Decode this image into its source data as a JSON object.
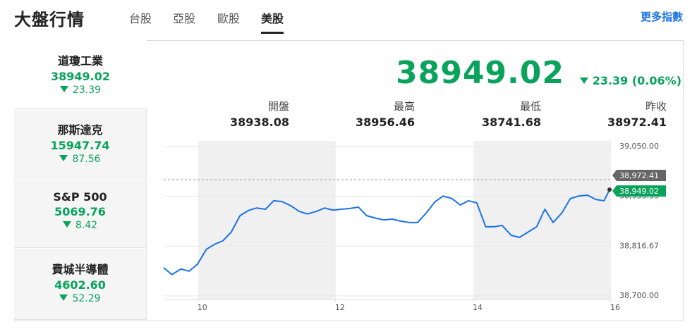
{
  "header": {
    "title": "大盤行情",
    "tabs": [
      "台股",
      "亞股",
      "歐股",
      "美股"
    ],
    "more": "更多指數"
  },
  "sidebar": {
    "items": [
      {
        "name": "道瓊工業",
        "value": "38949.02",
        "change": "23.39"
      },
      {
        "name": "那斯達克",
        "value": "15947.74",
        "change": "87.56"
      },
      {
        "name": "S&P 500",
        "value": "5069.76",
        "change": "8.42"
      },
      {
        "name": "費城半導體",
        "value": "4602.60",
        "change": "52.29"
      }
    ]
  },
  "quote": {
    "price": "38949.02",
    "change": "23.39 (0.06%)",
    "stats": [
      {
        "label": "開盤",
        "value": "38938.08"
      },
      {
        "label": "最高",
        "value": "38956.46"
      },
      {
        "label": "最低",
        "value": "38741.68"
      },
      {
        "label": "昨收",
        "value": "38972.41"
      }
    ]
  },
  "chart_data": {
    "type": "line",
    "x": [
      9.5,
      9.62,
      9.75,
      9.87,
      9.99,
      10.12,
      10.24,
      10.36,
      10.48,
      10.61,
      10.73,
      10.85,
      10.98,
      11.1,
      11.22,
      11.35,
      11.47,
      11.59,
      11.72,
      11.84,
      11.96,
      12.08,
      12.21,
      12.33,
      12.45,
      12.58,
      12.7,
      12.82,
      12.95,
      13.07,
      13.19,
      13.32,
      13.44,
      13.56,
      13.69,
      13.81,
      13.93,
      14.05,
      14.18,
      14.3,
      14.42,
      14.55,
      14.67,
      14.79,
      14.92,
      15.04,
      15.16,
      15.29,
      15.41,
      15.53,
      15.66,
      15.78,
      15.9,
      15.98
    ],
    "series": [
      {
        "name": "道瓊工業",
        "color": "#1a73e8",
        "values": [
          38766,
          38750,
          38763,
          38758,
          38774,
          38809,
          38821,
          38829,
          38849,
          38888,
          38900,
          38906,
          38903,
          38923,
          38921,
          38911,
          38898,
          38892,
          38898,
          38906,
          38901,
          38903,
          38905,
          38908,
          38888,
          38882,
          38878,
          38880,
          38875,
          38872,
          38872,
          38895,
          38920,
          38934,
          38928,
          38913,
          38923,
          38918,
          38862,
          38862,
          38865,
          38842,
          38837,
          38849,
          38862,
          38903,
          38872,
          38895,
          38928,
          38934,
          38936,
          38926,
          38923,
          38949.02
        ]
      }
    ],
    "xlim": [
      9.5,
      16
    ],
    "xticks": [
      10,
      12,
      14,
      16
    ],
    "ylim": [
      38700,
      39050
    ],
    "yticks": [
      {
        "value": 38700,
        "label": "38,700.00"
      },
      {
        "value": 38816.67,
        "label": "38,816.67"
      },
      {
        "value": 38933.33,
        "label": "38,933.33"
      },
      {
        "value": 39050,
        "label": "39,050.00"
      }
    ],
    "reference": {
      "value": 38972.41,
      "label": "38,972.41",
      "color": "#666666"
    },
    "last_label": "38,949.02",
    "last_color": "#0aa35c",
    "grid": true
  }
}
